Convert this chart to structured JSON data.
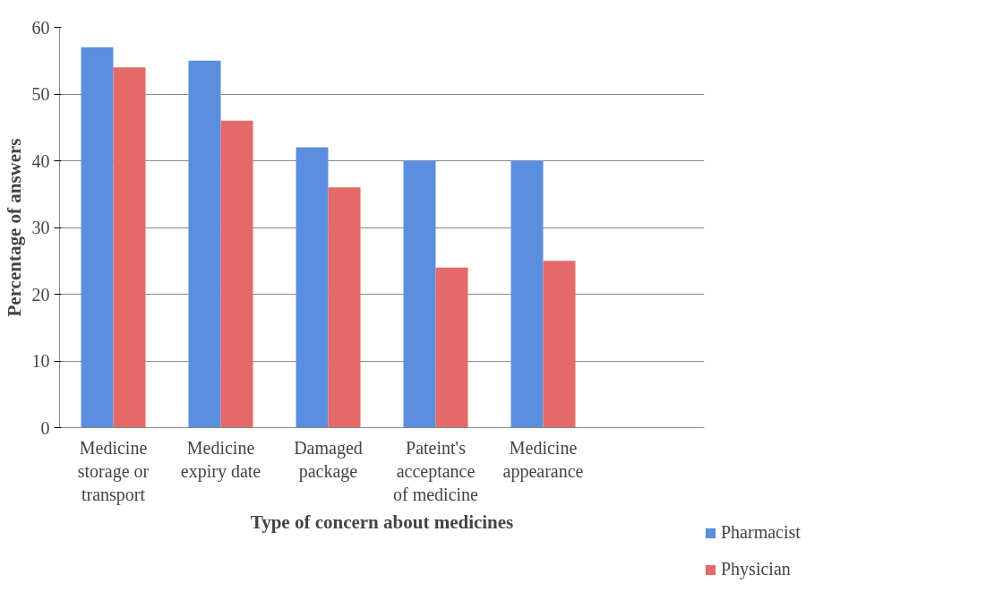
{
  "chart_data": {
    "type": "bar",
    "xlabel": "Type of concern about medicines",
    "ylabel": "Percentage of answers",
    "categories": [
      "Medicine storage or transport",
      "Medicine expiry date",
      "Damaged package",
      "Pateint's acceptance of medicine",
      "Medicine appearance",
      null
    ],
    "series": [
      {
        "name": "Pharmacist",
        "color": "#5b8ede",
        "values": [
          57,
          55,
          42,
          40,
          40,
          null
        ]
      },
      {
        "name": "Physician",
        "color": "#e36a68",
        "values": [
          54,
          46,
          36,
          24,
          25,
          null
        ]
      }
    ],
    "ylim": [
      0,
      60
    ],
    "yticks": [
      0,
      10,
      20,
      30,
      40,
      50,
      60
    ],
    "grid": "y",
    "legend": "right"
  }
}
